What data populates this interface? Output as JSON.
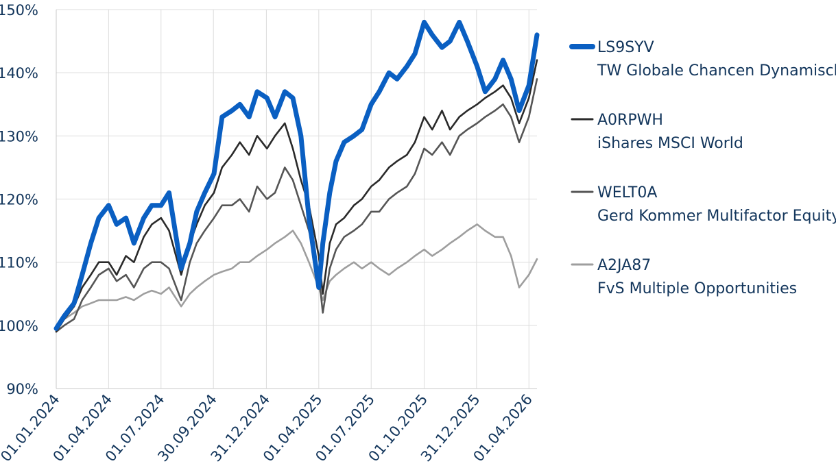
{
  "chart_data": {
    "type": "line",
    "title": "",
    "xlabel": "",
    "ylabel": "",
    "ylim": [
      90,
      150
    ],
    "yticks": [
      90,
      100,
      110,
      120,
      130,
      140,
      150
    ],
    "ytick_labels": [
      "90%",
      "100%",
      "110%",
      "120%",
      "130%",
      "140%",
      "150%"
    ],
    "x_range": [
      "2024-01-01",
      "2026-04-15"
    ],
    "xtick_labels": [
      "01.01.2024",
      "01.04.2024",
      "01.07.2024",
      "30.09.2024",
      "31.12.2024",
      "01.04.2025",
      "01.07.2025",
      "01.10.2025",
      "31.12.2025",
      "01.04.2026"
    ],
    "xtick_dates": [
      "2024-01-01",
      "2024-04-01",
      "2024-07-01",
      "2024-09-30",
      "2024-12-31",
      "2025-04-01",
      "2025-07-01",
      "2025-10-01",
      "2025-12-31",
      "2026-04-01"
    ],
    "grid": true,
    "legend_position": "right",
    "series": [
      {
        "code": "LS9SYV",
        "name": "TW Globale Chancen Dynamisch",
        "color": "#0a5fc2",
        "emphasis": true,
        "x": [
          "2024-01-01",
          "2024-01-15",
          "2024-02-01",
          "2024-02-15",
          "2024-03-01",
          "2024-03-15",
          "2024-04-01",
          "2024-04-15",
          "2024-05-01",
          "2024-05-15",
          "2024-06-01",
          "2024-06-15",
          "2024-07-01",
          "2024-07-15",
          "2024-08-05",
          "2024-08-20",
          "2024-09-01",
          "2024-09-15",
          "2024-10-01",
          "2024-10-15",
          "2024-11-01",
          "2024-11-15",
          "2024-12-01",
          "2024-12-15",
          "2025-01-01",
          "2025-01-15",
          "2025-02-01",
          "2025-02-15",
          "2025-03-01",
          "2025-03-15",
          "2025-04-01",
          "2025-04-08",
          "2025-04-20",
          "2025-05-01",
          "2025-05-15",
          "2025-06-01",
          "2025-06-15",
          "2025-07-01",
          "2025-07-15",
          "2025-08-01",
          "2025-08-15",
          "2025-09-01",
          "2025-09-15",
          "2025-10-01",
          "2025-10-15",
          "2025-11-01",
          "2025-11-15",
          "2025-12-01",
          "2025-12-15",
          "2026-01-01",
          "2026-01-15",
          "2026-02-01",
          "2026-02-15",
          "2026-03-01",
          "2026-03-15",
          "2026-04-01",
          "2026-04-15"
        ],
        "values": [
          99.5,
          101.5,
          103.5,
          108,
          113,
          117,
          119,
          116,
          117,
          113,
          117,
          119,
          119,
          121,
          109,
          113,
          118,
          121,
          124,
          133,
          134,
          135,
          133,
          137,
          136,
          133,
          137,
          136,
          130,
          117,
          106,
          113,
          121,
          126,
          129,
          130,
          131,
          135,
          137,
          140,
          139,
          141,
          143,
          148,
          146,
          144,
          145,
          148,
          145,
          141,
          137,
          139,
          142,
          139,
          134,
          138,
          146
        ]
      },
      {
        "code": "A0RPWH",
        "name": "iShares MSCI World",
        "color": "#2a2a2a",
        "emphasis": false,
        "x": [
          "2024-01-01",
          "2024-01-15",
          "2024-02-01",
          "2024-02-15",
          "2024-03-01",
          "2024-03-15",
          "2024-04-01",
          "2024-04-15",
          "2024-05-01",
          "2024-05-15",
          "2024-06-01",
          "2024-06-15",
          "2024-07-01",
          "2024-07-15",
          "2024-08-05",
          "2024-08-20",
          "2024-09-01",
          "2024-09-15",
          "2024-10-01",
          "2024-10-15",
          "2024-11-01",
          "2024-11-15",
          "2024-12-01",
          "2024-12-15",
          "2025-01-01",
          "2025-01-15",
          "2025-02-01",
          "2025-02-15",
          "2025-03-01",
          "2025-03-15",
          "2025-04-01",
          "2025-04-08",
          "2025-04-20",
          "2025-05-01",
          "2025-05-15",
          "2025-06-01",
          "2025-06-15",
          "2025-07-01",
          "2025-07-15",
          "2025-08-01",
          "2025-08-15",
          "2025-09-01",
          "2025-09-15",
          "2025-10-01",
          "2025-10-15",
          "2025-11-01",
          "2025-11-15",
          "2025-12-01",
          "2025-12-15",
          "2026-01-01",
          "2026-01-15",
          "2026-02-01",
          "2026-02-15",
          "2026-03-01",
          "2026-03-15",
          "2026-04-01",
          "2026-04-15"
        ],
        "values": [
          99,
          101,
          103,
          106,
          108,
          110,
          110,
          108,
          111,
          110,
          114,
          116,
          117,
          115,
          108,
          113,
          116,
          119,
          121,
          125,
          127,
          129,
          127,
          130,
          128,
          130,
          132,
          128,
          123,
          119,
          111,
          105,
          113,
          116,
          117,
          119,
          120,
          122,
          123,
          125,
          126,
          127,
          129,
          133,
          131,
          134,
          131,
          133,
          134,
          135,
          136,
          137,
          138,
          136,
          132,
          136,
          142
        ]
      },
      {
        "code": "WELT0A",
        "name": "Gerd Kommer Multifactor Equity",
        "color": "#555555",
        "emphasis": false,
        "x": [
          "2024-01-01",
          "2024-01-15",
          "2024-02-01",
          "2024-02-15",
          "2024-03-01",
          "2024-03-15",
          "2024-04-01",
          "2024-04-15",
          "2024-05-01",
          "2024-05-15",
          "2024-06-01",
          "2024-06-15",
          "2024-07-01",
          "2024-07-15",
          "2024-08-05",
          "2024-08-20",
          "2024-09-01",
          "2024-09-15",
          "2024-10-01",
          "2024-10-15",
          "2024-11-01",
          "2024-11-15",
          "2024-12-01",
          "2024-12-15",
          "2025-01-01",
          "2025-01-15",
          "2025-02-01",
          "2025-02-15",
          "2025-03-01",
          "2025-03-15",
          "2025-04-01",
          "2025-04-08",
          "2025-04-20",
          "2025-05-01",
          "2025-05-15",
          "2025-06-01",
          "2025-06-15",
          "2025-07-01",
          "2025-07-15",
          "2025-08-01",
          "2025-08-15",
          "2025-09-01",
          "2025-09-15",
          "2025-10-01",
          "2025-10-15",
          "2025-11-01",
          "2025-11-15",
          "2025-12-01",
          "2025-12-15",
          "2026-01-01",
          "2026-01-15",
          "2026-02-01",
          "2026-02-15",
          "2026-03-01",
          "2026-03-15",
          "2026-04-01",
          "2026-04-15"
        ],
        "values": [
          99,
          100,
          101,
          104,
          106,
          108,
          109,
          107,
          108,
          106,
          109,
          110,
          110,
          109,
          104,
          110,
          113,
          115,
          117,
          119,
          119,
          120,
          118,
          122,
          120,
          121,
          125,
          123,
          119,
          115,
          108,
          102,
          109,
          112,
          114,
          115,
          116,
          118,
          118,
          120,
          121,
          122,
          124,
          128,
          127,
          129,
          127,
          130,
          131,
          132,
          133,
          134,
          135,
          133,
          129,
          133,
          139
        ]
      },
      {
        "code": "A2JA87",
        "name": "FvS Multiple Opportunities",
        "color": "#9e9e9e",
        "emphasis": false,
        "x": [
          "2024-01-01",
          "2024-01-15",
          "2024-02-01",
          "2024-02-15",
          "2024-03-01",
          "2024-03-15",
          "2024-04-01",
          "2024-04-15",
          "2024-05-01",
          "2024-05-15",
          "2024-06-01",
          "2024-06-15",
          "2024-07-01",
          "2024-07-15",
          "2024-08-05",
          "2024-08-20",
          "2024-09-01",
          "2024-09-15",
          "2024-10-01",
          "2024-10-15",
          "2024-11-01",
          "2024-11-15",
          "2024-12-01",
          "2024-12-15",
          "2025-01-01",
          "2025-01-15",
          "2025-02-01",
          "2025-02-15",
          "2025-03-01",
          "2025-03-15",
          "2025-04-01",
          "2025-04-08",
          "2025-04-20",
          "2025-05-01",
          "2025-05-15",
          "2025-06-01",
          "2025-06-15",
          "2025-07-01",
          "2025-07-15",
          "2025-08-01",
          "2025-08-15",
          "2025-09-01",
          "2025-09-15",
          "2025-10-01",
          "2025-10-15",
          "2025-11-01",
          "2025-11-15",
          "2025-12-01",
          "2025-12-15",
          "2026-01-01",
          "2026-01-15",
          "2026-02-01",
          "2026-02-15",
          "2026-03-01",
          "2026-03-15",
          "2026-04-01",
          "2026-04-15"
        ],
        "values": [
          100,
          101,
          102,
          103,
          103.5,
          104,
          104,
          104,
          104.5,
          104,
          105,
          105.5,
          105,
          106,
          103,
          105,
          106,
          107,
          108,
          108.5,
          109,
          110,
          110,
          111,
          112,
          113,
          114,
          115,
          113,
          110,
          106,
          104,
          107,
          108,
          109,
          110,
          109,
          110,
          109,
          108,
          109,
          110,
          111,
          112,
          111,
          112,
          113,
          114,
          115,
          116,
          115,
          114,
          114,
          111,
          106,
          108,
          110.5
        ]
      }
    ]
  }
}
